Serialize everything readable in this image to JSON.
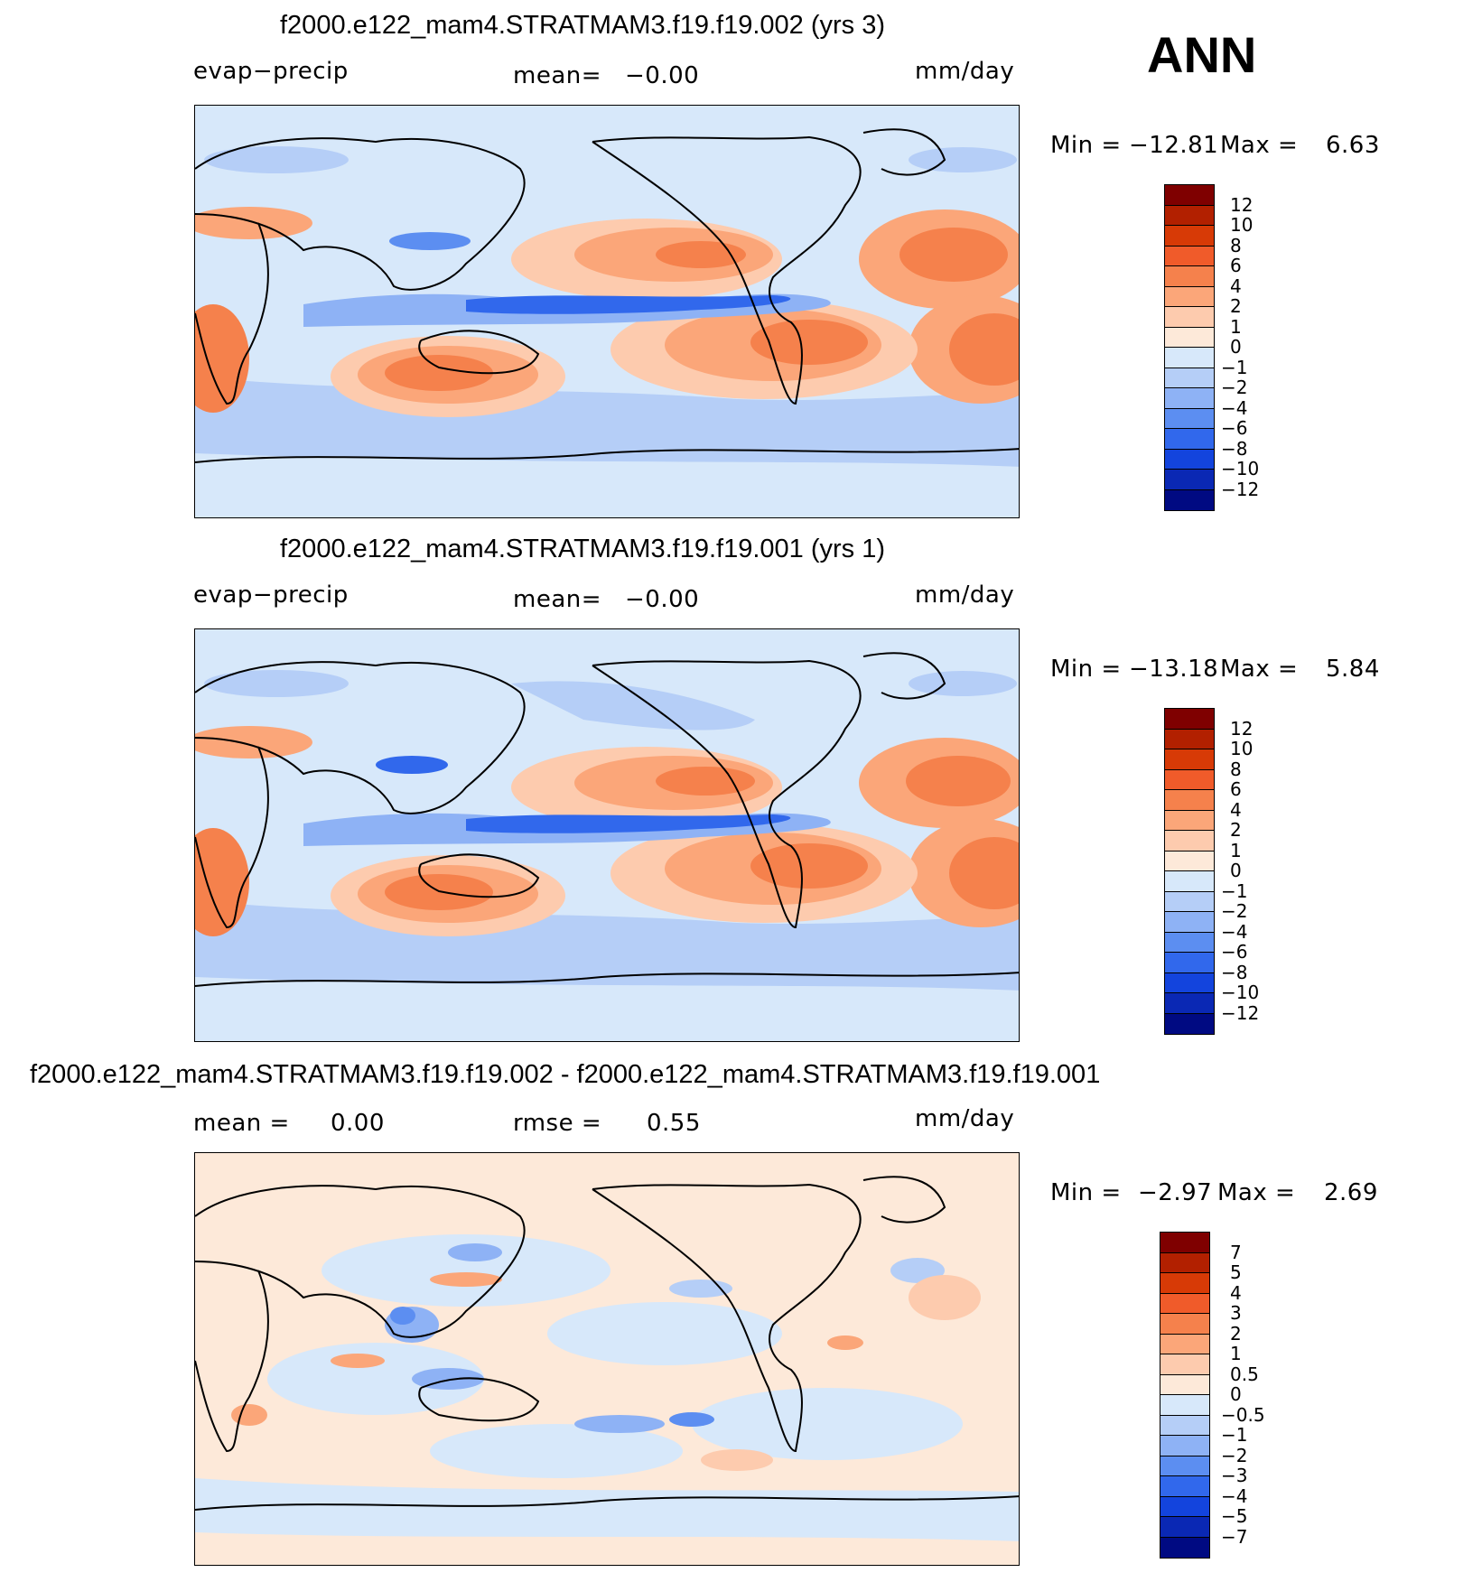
{
  "season": "ANN",
  "chart_data": [
    {
      "type": "heatmap",
      "title": "f2000.e122_mam4.STRATMAM3.f19.f19.002 (yrs 3)",
      "variable": "evap−precip",
      "mean_label": "mean=",
      "mean_value": "−0.00",
      "units": "mm/day",
      "min_label": "Min  =",
      "min_value": "−12.81",
      "max_label": "Max  =",
      "max_value": "6.63",
      "levels": [
        "12",
        "10",
        "8",
        "6",
        "4",
        "2",
        "1",
        "0",
        "−1",
        "−2",
        "−4",
        "−6",
        "−8",
        "−10",
        "−12"
      ],
      "colors": [
        "#7f0000",
        "#b22000",
        "#d73a06",
        "#f05b2a",
        "#f5814c",
        "#fba679",
        "#fdcbae",
        "#fde9d9",
        "#d7e8fa",
        "#b5cef7",
        "#8eb2f5",
        "#5c8ef1",
        "#3168ec",
        "#1344dd",
        "#0a28b4",
        "#000a82"
      ]
    },
    {
      "type": "heatmap",
      "title": "f2000.e122_mam4.STRATMAM3.f19.f19.001 (yrs 1)",
      "variable": "evap−precip",
      "mean_label": "mean=",
      "mean_value": "−0.00",
      "units": "mm/day",
      "min_label": "Min  =",
      "min_value": "−13.18",
      "max_label": "Max  =",
      "max_value": "5.84",
      "levels": [
        "12",
        "10",
        "8",
        "6",
        "4",
        "2",
        "1",
        "0",
        "−1",
        "−2",
        "−4",
        "−6",
        "−8",
        "−10",
        "−12"
      ],
      "colors": [
        "#7f0000",
        "#b22000",
        "#d73a06",
        "#f05b2a",
        "#f5814c",
        "#fba679",
        "#fdcbae",
        "#fde9d9",
        "#d7e8fa",
        "#b5cef7",
        "#8eb2f5",
        "#5c8ef1",
        "#3168ec",
        "#1344dd",
        "#0a28b4",
        "#000a82"
      ]
    },
    {
      "type": "heatmap",
      "title": "f2000.e122_mam4.STRATMAM3.f19.f19.002 - f2000.e122_mam4.STRATMAM3.f19.f19.001",
      "mean_label": "mean =",
      "mean_value": "0.00",
      "rmse_label": "rmse =",
      "rmse_value": "0.55",
      "units": "mm/day",
      "min_label": "Min  =",
      "min_value": "−2.97",
      "max_label": "Max  =",
      "max_value": "2.69",
      "levels": [
        "7",
        "5",
        "4",
        "3",
        "2",
        "1",
        "0.5",
        "0",
        "−0.5",
        "−1",
        "−2",
        "−3",
        "−4",
        "−5",
        "−7"
      ],
      "colors": [
        "#7f0000",
        "#b22000",
        "#d73a06",
        "#f05b2a",
        "#f5814c",
        "#fba679",
        "#fdcbae",
        "#fde9d9",
        "#d7e8fa",
        "#b5cef7",
        "#8eb2f5",
        "#5c8ef1",
        "#3168ec",
        "#1344dd",
        "#0a28b4",
        "#000a82"
      ]
    }
  ]
}
